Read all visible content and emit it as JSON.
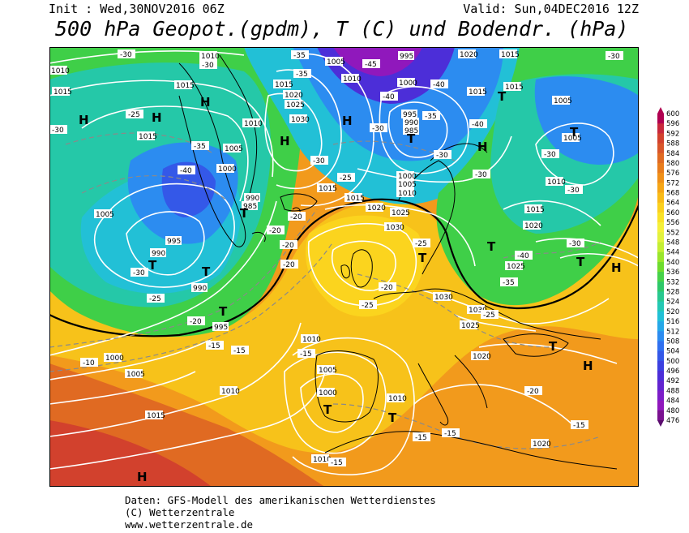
{
  "header": {
    "init": "Init : Wed,30NOV2016 06Z",
    "valid": "Valid: Sun,04DEC2016 12Z",
    "title": "500 hPa Geopot.(gpdm), T (C) und Bodendr. (hPa)"
  },
  "footer": {
    "line1": "Daten: GFS-Modell des amerikanischen Wetterdienstes",
    "line2": "(C) Wetterzentrale",
    "line3": "www.wetterzentrale.de"
  },
  "legend": {
    "levels": [
      "600",
      "596",
      "592",
      "588",
      "584",
      "580",
      "576",
      "572",
      "568",
      "564",
      "560",
      "556",
      "552",
      "548",
      "544",
      "540",
      "536",
      "532",
      "528",
      "524",
      "520",
      "516",
      "512",
      "508",
      "504",
      "500",
      "496",
      "492",
      "488",
      "484",
      "480",
      "476"
    ],
    "colors": [
      "#b00050",
      "#c8283c",
      "#d2412d",
      "#d8552a",
      "#e06a22",
      "#e87c1c",
      "#f09018",
      "#f6a616",
      "#f9bb18",
      "#fbd01e",
      "#fae228",
      "#f5f03a",
      "#e2f23e",
      "#c4ef34",
      "#9ae62c",
      "#6fdc2e",
      "#46d24a",
      "#2ec86a",
      "#28c890",
      "#24c8b4",
      "#22c0d6",
      "#26a8e8",
      "#2c8cf0",
      "#3070f0",
      "#3458e8",
      "#3c40e0",
      "#4c2ed8",
      "#6224d0",
      "#7c1ec8",
      "#9018bc",
      "#7a1290",
      "#5a0c6e"
    ]
  },
  "map_labels": {
    "pressure": [
      "1010",
      "1015",
      "1005",
      "1000",
      "995",
      "990",
      "985",
      "1020",
      "1025",
      "1030"
    ],
    "temperature": [
      "-10",
      "-15",
      "-20",
      "-25",
      "-30",
      "-35",
      "-40",
      "-45"
    ],
    "high": "H",
    "low": "T"
  }
}
